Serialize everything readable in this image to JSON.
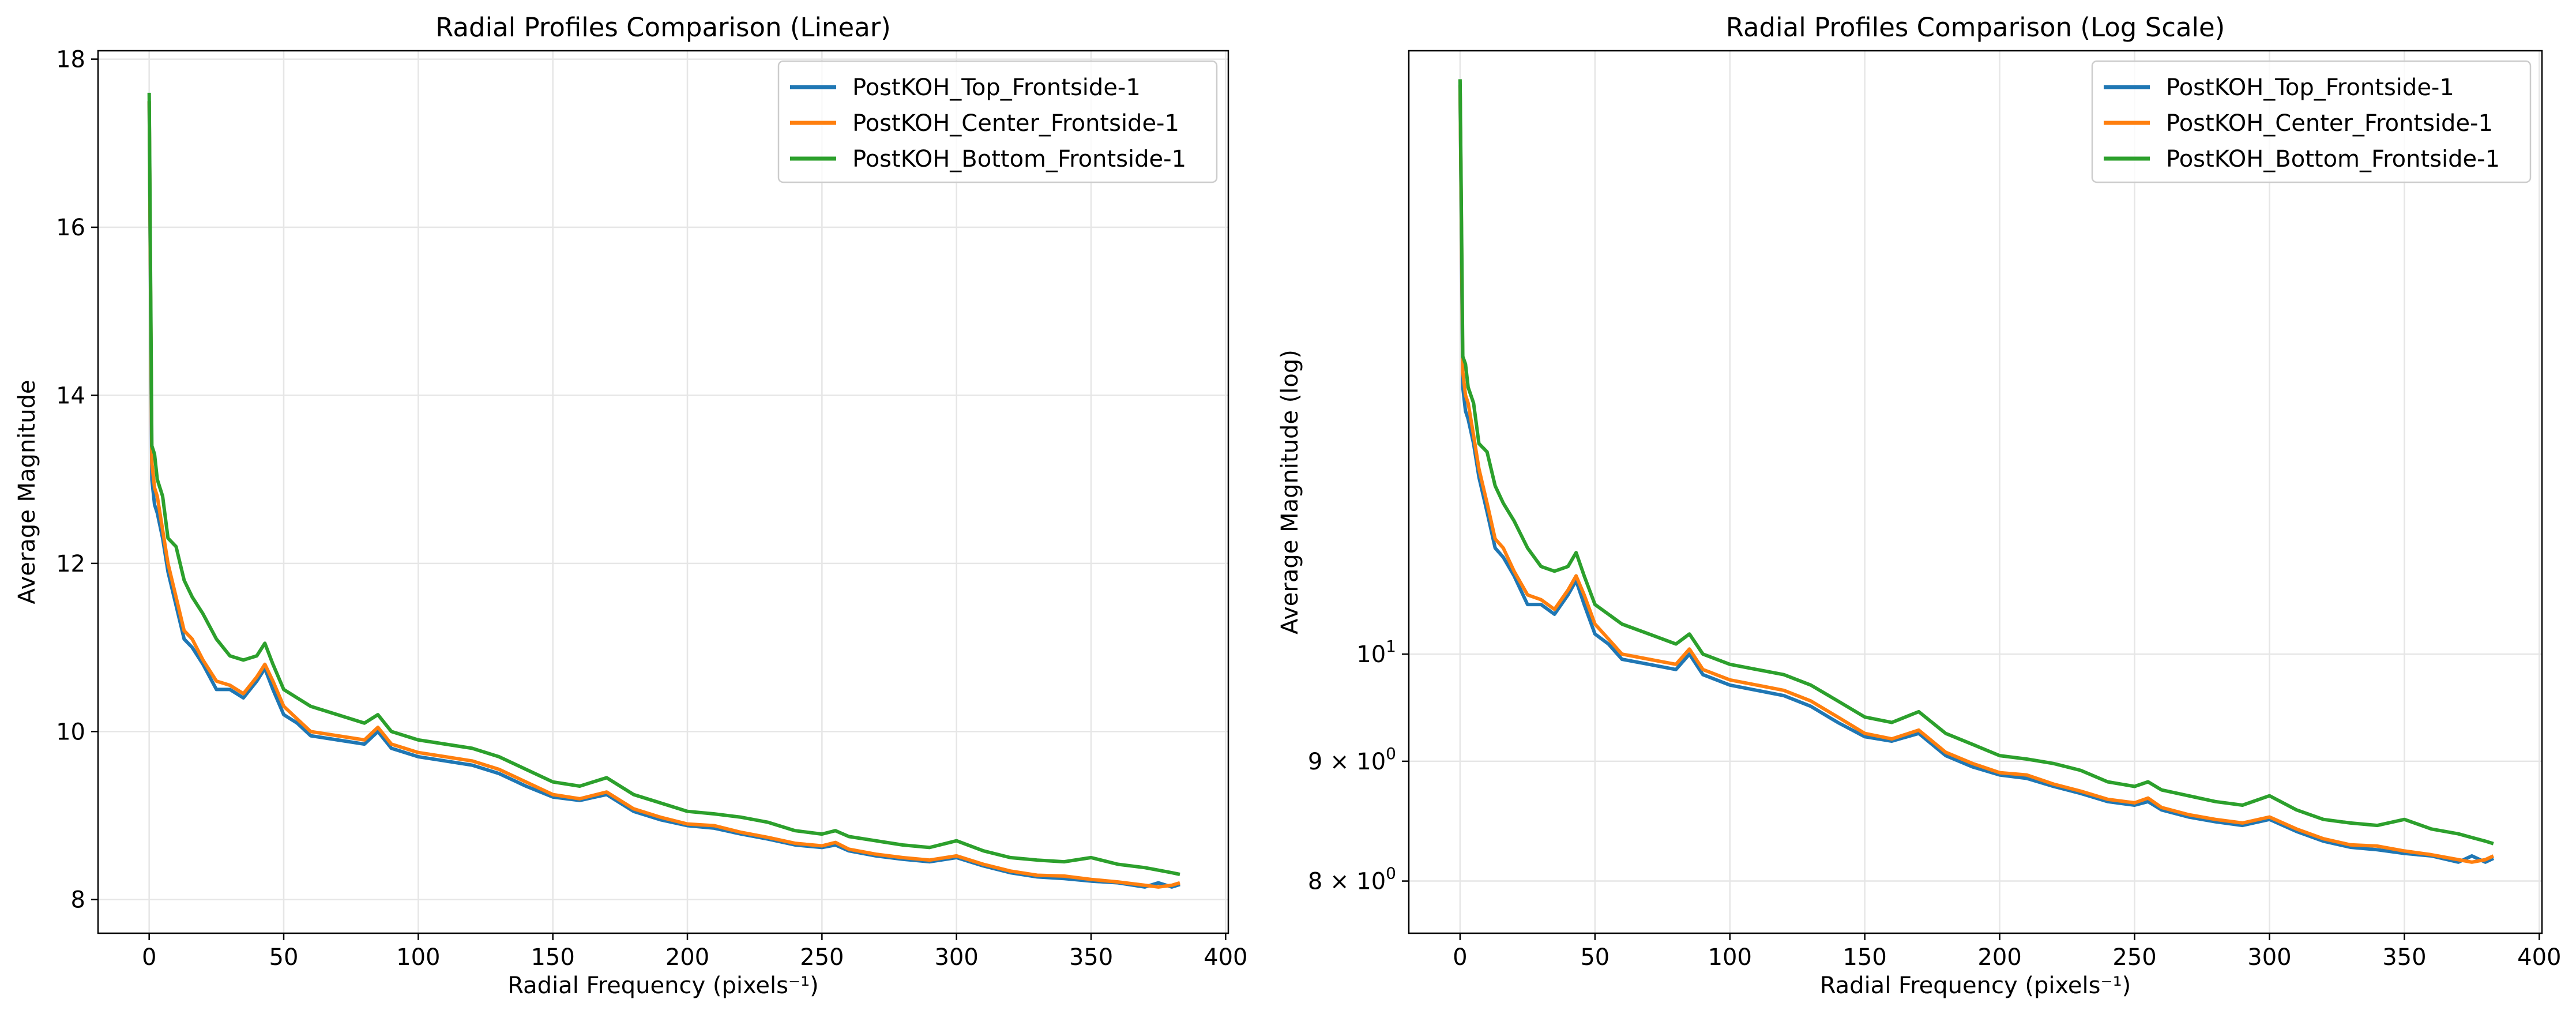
{
  "chart_data": [
    {
      "type": "line",
      "title": "Radial Profiles Comparison (Linear)",
      "xlabel": "Radial Frequency (pixels⁻¹)",
      "ylabel": "Average Magnitude",
      "xlim": [
        -19,
        401
      ],
      "ylim": [
        7.6,
        18.1
      ],
      "yscale": "linear",
      "xticks": [
        0,
        50,
        100,
        150,
        200,
        250,
        300,
        350,
        400
      ],
      "xtick_labels": [
        "0",
        "50",
        "100",
        "150",
        "200",
        "250",
        "300",
        "350",
        "400"
      ],
      "yticks": [
        8,
        10,
        12,
        14,
        16,
        18
      ],
      "ytick_labels": [
        "8",
        "10",
        "12",
        "14",
        "16",
        "18"
      ],
      "grid": true,
      "legend_position": "top-right",
      "series": [
        {
          "name": "PostKOH_Top_Frontside-1",
          "color": "#1f77b4",
          "x": [
            0,
            1,
            2,
            3,
            5,
            7,
            10,
            13,
            16,
            20,
            25,
            30,
            35,
            40,
            43,
            46,
            50,
            55,
            60,
            70,
            80,
            85,
            90,
            100,
            110,
            120,
            130,
            140,
            150,
            160,
            170,
            180,
            190,
            200,
            210,
            220,
            230,
            240,
            250,
            255,
            260,
            270,
            280,
            290,
            300,
            310,
            320,
            330,
            340,
            350,
            360,
            370,
            375,
            380,
            383
          ],
          "y": [
            17.5,
            13.0,
            12.7,
            12.6,
            12.3,
            11.9,
            11.5,
            11.1,
            11.0,
            10.8,
            10.5,
            10.5,
            10.4,
            10.6,
            10.75,
            10.5,
            10.2,
            10.1,
            9.95,
            9.9,
            9.85,
            10.0,
            9.8,
            9.7,
            9.65,
            9.6,
            9.5,
            9.35,
            9.22,
            9.18,
            9.25,
            9.05,
            8.95,
            8.88,
            8.85,
            8.78,
            8.72,
            8.65,
            8.62,
            8.65,
            8.58,
            8.52,
            8.48,
            8.45,
            8.5,
            8.4,
            8.32,
            8.27,
            8.25,
            8.22,
            8.2,
            8.15,
            8.2,
            8.15,
            8.18
          ]
        },
        {
          "name": "PostKOH_Center_Frontside-1",
          "color": "#ff7f0e",
          "x": [
            0,
            1,
            2,
            3,
            5,
            7,
            10,
            13,
            16,
            20,
            25,
            30,
            35,
            40,
            43,
            46,
            50,
            55,
            60,
            70,
            80,
            85,
            90,
            100,
            110,
            120,
            130,
            140,
            150,
            160,
            170,
            180,
            190,
            200,
            210,
            220,
            230,
            240,
            250,
            255,
            260,
            270,
            280,
            290,
            300,
            310,
            320,
            330,
            340,
            350,
            360,
            370,
            375,
            380,
            383
          ],
          "y": [
            17.5,
            13.2,
            12.9,
            12.8,
            12.4,
            12.0,
            11.6,
            11.2,
            11.1,
            10.85,
            10.6,
            10.55,
            10.45,
            10.65,
            10.8,
            10.6,
            10.3,
            10.15,
            10.0,
            9.95,
            9.9,
            10.05,
            9.85,
            9.75,
            9.7,
            9.65,
            9.55,
            9.4,
            9.25,
            9.2,
            9.28,
            9.08,
            8.98,
            8.9,
            8.88,
            8.8,
            8.74,
            8.67,
            8.64,
            8.68,
            8.6,
            8.54,
            8.5,
            8.47,
            8.52,
            8.42,
            8.34,
            8.29,
            8.28,
            8.24,
            8.21,
            8.17,
            8.15,
            8.17,
            8.2
          ]
        },
        {
          "name": "PostKOH_Bottom_Frontside-1",
          "color": "#2ca02c",
          "x": [
            0,
            1,
            2,
            3,
            5,
            7,
            10,
            13,
            16,
            20,
            25,
            30,
            35,
            40,
            43,
            46,
            50,
            55,
            60,
            70,
            80,
            85,
            90,
            100,
            110,
            120,
            130,
            140,
            150,
            160,
            170,
            180,
            190,
            200,
            210,
            220,
            230,
            240,
            250,
            255,
            260,
            270,
            280,
            290,
            300,
            310,
            320,
            330,
            340,
            350,
            360,
            370,
            375,
            380,
            383
          ],
          "y": [
            17.6,
            13.4,
            13.3,
            13.0,
            12.8,
            12.3,
            12.2,
            11.8,
            11.6,
            11.4,
            11.1,
            10.9,
            10.85,
            10.9,
            11.05,
            10.8,
            10.5,
            10.4,
            10.3,
            10.2,
            10.1,
            10.2,
            10.0,
            9.9,
            9.85,
            9.8,
            9.7,
            9.55,
            9.4,
            9.35,
            9.45,
            9.25,
            9.15,
            9.05,
            9.02,
            8.98,
            8.92,
            8.82,
            8.78,
            8.82,
            8.75,
            8.7,
            8.65,
            8.62,
            8.7,
            8.58,
            8.5,
            8.47,
            8.45,
            8.5,
            8.42,
            8.38,
            8.35,
            8.32,
            8.3
          ]
        }
      ]
    },
    {
      "type": "line",
      "title": "Radial Profiles Comparison (Log Scale)",
      "xlabel": "Radial Frequency (pixels⁻¹)",
      "ylabel": "Average Magnitude (log)",
      "xlim": [
        -19,
        401
      ],
      "ylim": [
        7.6,
        18.1
      ],
      "yscale": "log",
      "xticks": [
        0,
        50,
        100,
        150,
        200,
        250,
        300,
        350,
        400
      ],
      "xtick_labels": [
        "0",
        "50",
        "100",
        "150",
        "200",
        "250",
        "300",
        "350",
        "400"
      ],
      "yticks": [
        8,
        9,
        10
      ],
      "ytick_labels": [
        {
          "mantissa": "8 × 10",
          "exponent": "0"
        },
        {
          "mantissa": "9 × 10",
          "exponent": "0"
        },
        {
          "mantissa": "10",
          "exponent": "1"
        }
      ],
      "grid": true,
      "legend_position": "top-right",
      "series_ref": "same as linear panel (identical data)"
    }
  ]
}
